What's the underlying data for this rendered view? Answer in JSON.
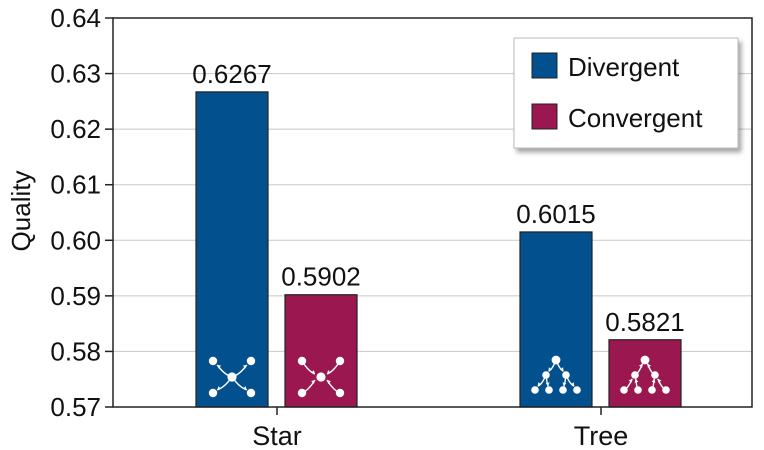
{
  "chart_data": {
    "type": "bar",
    "categories": [
      "Star",
      "Tree"
    ],
    "series": [
      {
        "name": "Divergent",
        "values": [
          0.6267,
          0.6015
        ],
        "labels": [
          "0.6267",
          "0.6015"
        ],
        "color": "#03508f"
      },
      {
        "name": "Convergent",
        "values": [
          0.5902,
          0.5821
        ],
        "labels": [
          "0.5902",
          "0.5821"
        ],
        "color": "#9a1750"
      }
    ],
    "title": "",
    "xlabel": "",
    "ylabel": "Quality",
    "ylim": [
      0.57,
      0.64
    ],
    "yticks": [
      "0.57",
      "0.58",
      "0.59",
      "0.60",
      "0.61",
      "0.62",
      "0.63",
      "0.64"
    ],
    "grid": "horizontal",
    "legend": "top-right",
    "icons": [
      "star-divergent-icon",
      "star-convergent-icon",
      "tree-divergent-icon",
      "tree-convergent-icon"
    ]
  }
}
